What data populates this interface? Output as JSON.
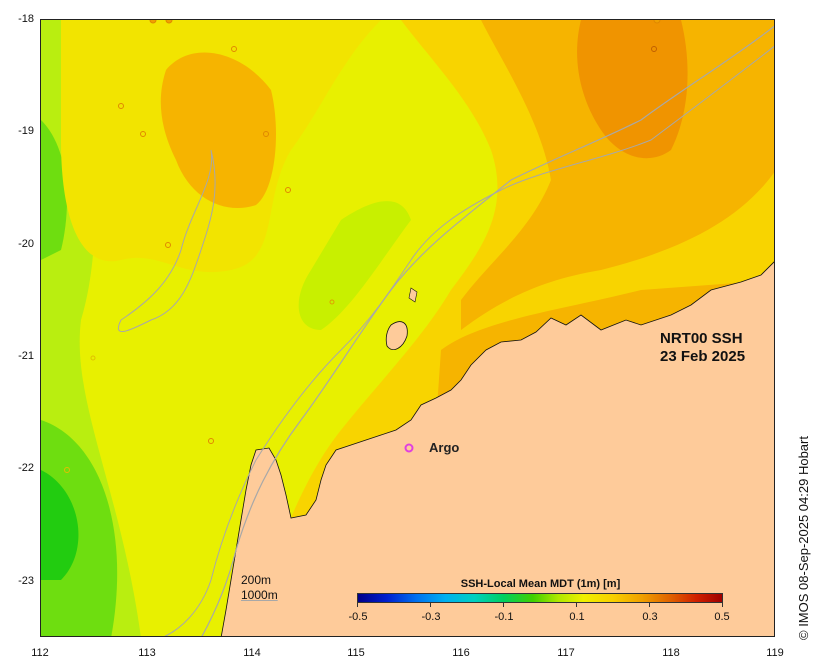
{
  "map": {
    "product_line1": "NRT00 SSH",
    "product_line2": "23 Feb 2025",
    "argo_label": "Argo",
    "lat_ticks": [
      "-18",
      "-19",
      "-20",
      "-21",
      "-22",
      "-23"
    ],
    "lon_ticks": [
      "112",
      "113",
      "114",
      "115",
      "116",
      "117",
      "118",
      "119"
    ],
    "depth_legend_1": "200m",
    "depth_legend_2": "1000m",
    "colorbar_title": "SSH-Local Mean MDT (1m) [m]",
    "colorbar_ticks": [
      "-0.5",
      "-0.3",
      "-0.1",
      "0.1",
      "0.3",
      "0.5"
    ],
    "credit": "© IMOS 08-Sep-2025 04:29 Hobart"
  },
  "colors": {
    "land": "#fecb9a",
    "argo_marker": "#e040e0",
    "isobath": "#a8a8a8"
  }
}
